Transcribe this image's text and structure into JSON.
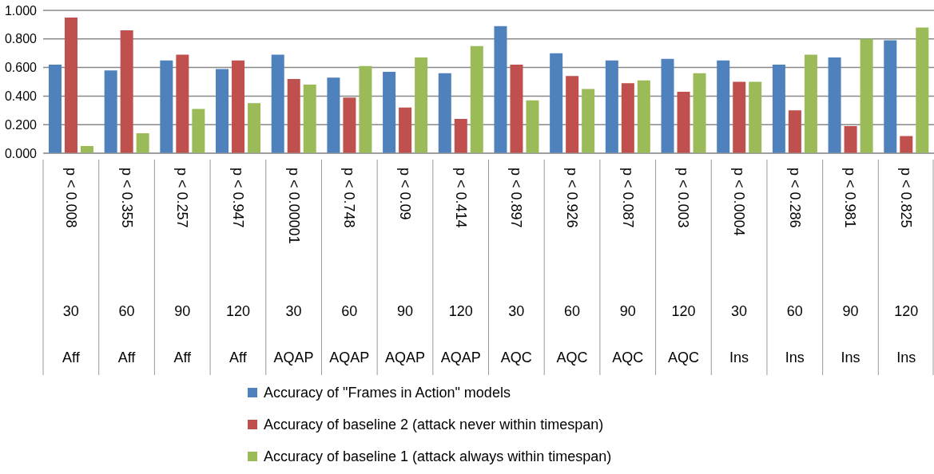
{
  "chart_data": {
    "type": "bar",
    "categories": [
      "p < 0.008\n30\nAff",
      "p < 0.355\n60\nAff",
      "p < 0.257\n90\nAff",
      "p < 0.947\n120\nAff",
      "p < 0.00001\n30\nAQAP",
      "p < 0.748\n60\nAQAP",
      "p < 0.09\n90\nAQAP",
      "p < 0.414\n120\nAQAP",
      "p < 0.897\n30\nAQC",
      "p < 0.926\n60\nAQC",
      "p < 0.087\n90\nAQC",
      "p < 0.003\n120\nAQC",
      "p < 0.0004\n30\nIns",
      "p < 0.286\n60\nIns",
      "p < 0.981\n90\nIns",
      "p < 0.825\n120\nIns"
    ],
    "series": [
      {
        "name": "Accuracy of \"Frames in Action\" models",
        "color": "#4f81bd",
        "values": [
          0.62,
          0.58,
          0.65,
          0.59,
          0.69,
          0.53,
          0.57,
          0.56,
          0.89,
          0.7,
          0.65,
          0.66,
          0.65,
          0.62,
          0.67,
          0.79
        ]
      },
      {
        "name": "Accuracy of baseline 2 (attack never within timespan)",
        "color": "#c0504d",
        "values": [
          0.95,
          0.86,
          0.69,
          0.65,
          0.52,
          0.39,
          0.32,
          0.24,
          0.62,
          0.54,
          0.49,
          0.43,
          0.5,
          0.3,
          0.19,
          0.12
        ]
      },
      {
        "name": "Accuracy of baseline 1 (attack always within timespan)",
        "color": "#9bbb59",
        "values": [
          0.05,
          0.14,
          0.31,
          0.35,
          0.48,
          0.61,
          0.67,
          0.75,
          0.37,
          0.45,
          0.51,
          0.56,
          0.5,
          0.69,
          0.8,
          0.88
        ]
      }
    ],
    "ylim": [
      0,
      1
    ],
    "yticks": [
      {
        "value": 0,
        "label": "0.000"
      },
      {
        "value": 0.2,
        "label": "0.200"
      },
      {
        "value": 0.4,
        "label": "0.400"
      },
      {
        "value": 0.6,
        "label": "0.600"
      },
      {
        "value": 0.8,
        "label": "0.800"
      },
      {
        "value": 1,
        "label": "1.000"
      }
    ],
    "grid": "y",
    "legend": "bottom"
  }
}
